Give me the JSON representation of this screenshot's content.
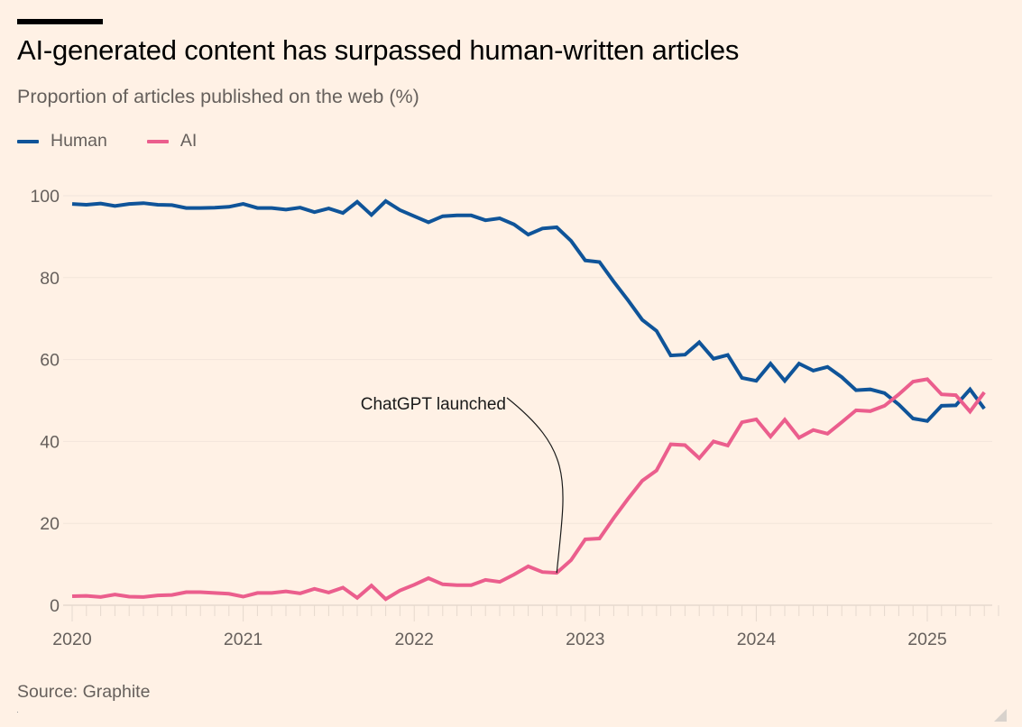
{
  "header": {
    "title": "AI-generated content has surpassed human-written articles",
    "subtitle": "Proportion of articles published on the web (%)"
  },
  "legend": [
    {
      "label": "Human",
      "color": "#0f5499"
    },
    {
      "label": "AI",
      "color": "#eb5e8d"
    }
  ],
  "footer": {
    "source": "Source: Graphite"
  },
  "chart_data": {
    "type": "line",
    "title": "AI-generated content has surpassed human-written articles",
    "subtitle": "Proportion of articles published on the web (%)",
    "xlabel": "",
    "ylabel": "",
    "x_start": "2020-01",
    "x_frequency": "monthly",
    "x_ticks": [
      "2020",
      "2021",
      "2022",
      "2023",
      "2024",
      "2025"
    ],
    "y_ticks": [
      0,
      20,
      40,
      60,
      80,
      100
    ],
    "ylim": [
      0,
      100
    ],
    "grid": true,
    "legend_position": "top-left",
    "series": [
      {
        "name": "Human",
        "color": "#0f5499",
        "values": [
          98,
          97.8,
          98.1,
          97.5,
          98,
          98.2,
          97.8,
          97.7,
          97,
          97,
          97.1,
          97.3,
          98,
          97,
          97,
          96.6,
          97.1,
          96,
          96.9,
          95.8,
          98.5,
          95.3,
          98.7,
          96.5,
          95,
          93.5,
          95,
          95.2,
          95.2,
          94,
          94.5,
          93,
          90.5,
          92,
          92.3,
          89,
          84.2,
          83.8,
          79,
          74.5,
          69.7,
          67,
          61,
          61.2,
          64.2,
          60.2,
          61.1,
          55.5,
          54.8,
          59,
          54.8,
          59,
          57.3,
          58.2,
          55.7,
          52.5,
          52.7,
          51.8,
          49,
          45.6,
          45,
          48.7,
          48.8,
          52.7,
          48
        ]
      },
      {
        "name": "AI",
        "color": "#eb5e8d",
        "values": [
          2.2,
          2.3,
          2,
          2.6,
          2.1,
          2,
          2.4,
          2.5,
          3.2,
          3.2,
          3,
          2.8,
          2.1,
          3,
          3,
          3.4,
          2.9,
          4,
          3.1,
          4.3,
          1.8,
          4.8,
          1.5,
          3.6,
          5,
          6.6,
          5.1,
          4.9,
          4.9,
          6.2,
          5.7,
          7.5,
          9.5,
          8.1,
          7.9,
          11,
          16.1,
          16.3,
          21.3,
          26,
          30.4,
          32.9,
          39.3,
          39.1,
          35.9,
          40,
          39,
          44.7,
          45.4,
          41.2,
          45.3,
          40.9,
          42.8,
          41.9,
          44.7,
          47.6,
          47.4,
          48.7,
          51.5,
          54.6,
          55.2,
          51.5,
          51.3,
          47.3,
          52
        ]
      }
    ],
    "annotations": [
      {
        "text": "ChatGPT launched",
        "x": "2022-11",
        "series": "AI",
        "value": 7.9
      }
    ]
  }
}
